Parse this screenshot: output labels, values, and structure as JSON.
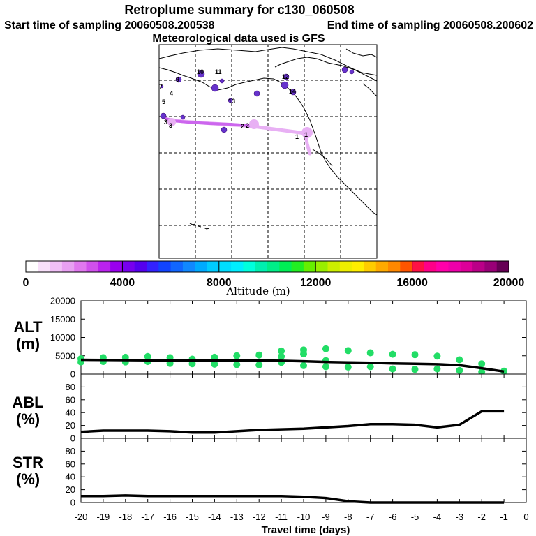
{
  "header": {
    "title": "Retroplume summary for c130_060508",
    "start_sampling": "Start time of sampling 20060508.200538",
    "end_sampling": "End time of sampling 20060508.200602",
    "met_data": "Meteorological data used is GFS"
  },
  "colors": {
    "trajectory_main": "#cc66ee",
    "trajectory_light": "#e0a0f0",
    "alt_dots": "#22dd66",
    "line": "#000000"
  },
  "colorbar": {
    "unit_label": "Altitude (m)",
    "tick_labels": [
      "0",
      "4000",
      "8000",
      "12000",
      "16000",
      "20000"
    ],
    "colors": [
      "#ffffff",
      "#f8e0fa",
      "#f0c0f6",
      "#e8a0f2",
      "#e078ee",
      "#d050ec",
      "#bb22ee",
      "#9900ee",
      "#7700ee",
      "#5500ee",
      "#3322ff",
      "#1144ff",
      "#1166ff",
      "#1188ff",
      "#00aaff",
      "#00ccff",
      "#00ddff",
      "#00eeff",
      "#00ffdd",
      "#00f0b0",
      "#00ee88",
      "#00ee55",
      "#22ee22",
      "#66ee00",
      "#99ee00",
      "#ccee00",
      "#eeee00",
      "#ffee00",
      "#ffcc00",
      "#ffaa00",
      "#ff8800",
      "#ff5500",
      "#ff1144",
      "#ff0088",
      "#ff00aa",
      "#ee00aa",
      "#dd0099",
      "#bb0088",
      "#990077",
      "#660055"
    ]
  },
  "map": {
    "trajectory_labels": [
      "1",
      "1",
      "2",
      "2",
      "3",
      "3",
      "4",
      "5",
      "7",
      "9",
      "10",
      "11",
      "12",
      "13",
      "14"
    ]
  },
  "chart_data": [
    {
      "type": "scatter",
      "name": "ALT",
      "ylabel": "ALT",
      "yunit": "(m)",
      "ylim": [
        0,
        20000
      ],
      "yticks": [
        0,
        5000,
        10000,
        15000,
        20000
      ],
      "x": [
        -20,
        -19,
        -18,
        -17,
        -16,
        -15,
        -14,
        -13,
        -12,
        -11,
        -10,
        -9,
        -8,
        -7,
        -6,
        -5,
        -4,
        -3,
        -2,
        -1
      ],
      "median_line": [
        3900,
        3850,
        3800,
        3750,
        3700,
        3700,
        3700,
        3700,
        3700,
        3650,
        3500,
        3300,
        3200,
        3100,
        2900,
        2800,
        2700,
        2400,
        1600,
        700
      ],
      "dots": [
        {
          "x": -20,
          "y": 4200
        },
        {
          "x": -20,
          "y": 3300
        },
        {
          "x": -19,
          "y": 4500
        },
        {
          "x": -19,
          "y": 3400
        },
        {
          "x": -18,
          "y": 4600
        },
        {
          "x": -18,
          "y": 3300
        },
        {
          "x": -17,
          "y": 4800
        },
        {
          "x": -17,
          "y": 3400
        },
        {
          "x": -16,
          "y": 4500
        },
        {
          "x": -16,
          "y": 2900
        },
        {
          "x": -15,
          "y": 4100
        },
        {
          "x": -15,
          "y": 2800
        },
        {
          "x": -14,
          "y": 4600
        },
        {
          "x": -14,
          "y": 2700
        },
        {
          "x": -13,
          "y": 5000
        },
        {
          "x": -13,
          "y": 2600
        },
        {
          "x": -12,
          "y": 5200
        },
        {
          "x": -12,
          "y": 2500
        },
        {
          "x": -11,
          "y": 6300
        },
        {
          "x": -11,
          "y": 4800
        },
        {
          "x": -11,
          "y": 3200
        },
        {
          "x": -10,
          "y": 6600
        },
        {
          "x": -10,
          "y": 5500
        },
        {
          "x": -10,
          "y": 2300
        },
        {
          "x": -9,
          "y": 6900
        },
        {
          "x": -9,
          "y": 3700
        },
        {
          "x": -9,
          "y": 2000
        },
        {
          "x": -8,
          "y": 6400
        },
        {
          "x": -8,
          "y": 1900
        },
        {
          "x": -7,
          "y": 5800
        },
        {
          "x": -7,
          "y": 2000
        },
        {
          "x": -6,
          "y": 5400
        },
        {
          "x": -6,
          "y": 1400
        },
        {
          "x": -5,
          "y": 5300
        },
        {
          "x": -5,
          "y": 1300
        },
        {
          "x": -4,
          "y": 4900
        },
        {
          "x": -4,
          "y": 1400
        },
        {
          "x": -3,
          "y": 3900
        },
        {
          "x": -3,
          "y": 1000
        },
        {
          "x": -2,
          "y": 2800
        },
        {
          "x": -2,
          "y": 600
        },
        {
          "x": -1,
          "y": 800
        }
      ]
    },
    {
      "type": "line",
      "name": "ABL",
      "ylabel": "ABL",
      "yunit": "(%)",
      "ylim": [
        0,
        100
      ],
      "yticks": [
        0,
        20,
        40,
        60,
        80
      ],
      "x": [
        -20,
        -19,
        -18,
        -17,
        -16,
        -15,
        -14,
        -13,
        -12,
        -11,
        -10,
        -9,
        -8,
        -7,
        -6,
        -5,
        -4,
        -3,
        -2,
        -1
      ],
      "values": [
        10,
        12,
        12,
        12,
        11,
        9,
        9,
        11,
        13,
        14,
        15,
        17,
        19,
        22,
        22,
        21,
        17,
        21,
        42,
        42
      ]
    },
    {
      "type": "line",
      "name": "STR",
      "ylabel": "STR",
      "yunit": "(%)",
      "ylim": [
        0,
        100
      ],
      "yticks": [
        0,
        20,
        40,
        60,
        80
      ],
      "x": [
        -20,
        -19,
        -18,
        -17,
        -16,
        -15,
        -14,
        -13,
        -12,
        -11,
        -10,
        -9,
        -8,
        -7,
        -6,
        -5,
        -4,
        -3,
        -2,
        -1
      ],
      "values": [
        10,
        10,
        11,
        10,
        10,
        10,
        10,
        10,
        10,
        10,
        9,
        7,
        2,
        0,
        0,
        0,
        0,
        0,
        0,
        0
      ]
    }
  ],
  "x_axis": {
    "label": "Travel time (days)",
    "tick_labels": [
      "-20",
      "-19",
      "-18",
      "-17",
      "-16",
      "-15",
      "-14",
      "-13",
      "-12",
      "-11",
      "-10",
      "-9",
      "-8",
      "-7",
      "-6",
      "-5",
      "-4",
      "-3",
      "-2",
      "-1",
      "0"
    ],
    "xlim": [
      -20,
      0
    ]
  }
}
